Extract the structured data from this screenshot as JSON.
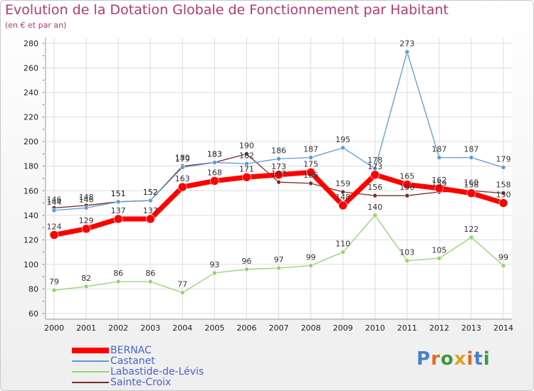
{
  "title": "Evolution de la Dotation Globale de Fonctionnement par Habitant",
  "subtitle": "(en € et par an)",
  "logo_text": "Proxiti",
  "chart_data": {
    "type": "line",
    "title": "Evolution de la Dotation Globale de Fonctionnement par Habitant",
    "subtitle": "(en € et par an)",
    "xlabel": "",
    "ylabel": "",
    "x": [
      "2000",
      "2001",
      "2002",
      "2003",
      "2004",
      "2005",
      "2006",
      "2007",
      "2008",
      "2009",
      "2010",
      "2011",
      "2012",
      "2013",
      "2014"
    ],
    "ylim": [
      60,
      280
    ],
    "yticks": [
      60,
      80,
      100,
      120,
      140,
      160,
      180,
      200,
      220,
      240,
      260,
      280
    ],
    "grid": true,
    "legend_position": "bottom-left",
    "series": [
      {
        "name": "Sainte-Croix",
        "color": "#7a2a2a",
        "values": [
          146,
          148,
          151,
          152,
          180,
          183,
          190,
          167,
          166,
          159,
          156,
          156,
          159,
          160,
          158
        ]
      },
      {
        "name": "Labastide-de-Lévis",
        "color": "#92d36e",
        "values": [
          79,
          82,
          86,
          86,
          77,
          93,
          96,
          97,
          99,
          110,
          140,
          103,
          105,
          122,
          99
        ]
      },
      {
        "name": "Castanet",
        "color": "#5b9bd5",
        "values": [
          144,
          146,
          151,
          152,
          179,
          183,
          182,
          186,
          187,
          195,
          178,
          273,
          187,
          187,
          179
        ]
      },
      {
        "name": "BERNAC",
        "color": "#ff0000",
        "values": [
          124,
          129,
          137,
          137,
          163,
          168,
          171,
          173,
          175,
          148,
          173,
          165,
          162,
          158,
          150
        ]
      }
    ],
    "data_labels": {
      "Sainte-Croix": [
        "146",
        "148",
        "151",
        "152",
        "180",
        "183",
        "190",
        "167",
        "166",
        "159",
        "156",
        "156",
        "159",
        "160",
        "158"
      ],
      "Labastide-de-Lévis": [
        "79",
        "82",
        "86",
        "86",
        "77",
        "93",
        "96",
        "97",
        "99",
        "110",
        "140",
        "103",
        "105",
        "122",
        "99"
      ],
      "Castanet": [
        "144",
        "146",
        "151",
        "152",
        "179",
        "183",
        "182",
        "186",
        "187",
        "195",
        "178",
        "273",
        "187",
        "187",
        "179"
      ],
      "BERNAC": [
        "124",
        "129",
        "137",
        "137",
        "163",
        "168",
        "171",
        "173",
        "175",
        "148",
        "173",
        "165",
        "162",
        "158",
        "150"
      ]
    }
  }
}
